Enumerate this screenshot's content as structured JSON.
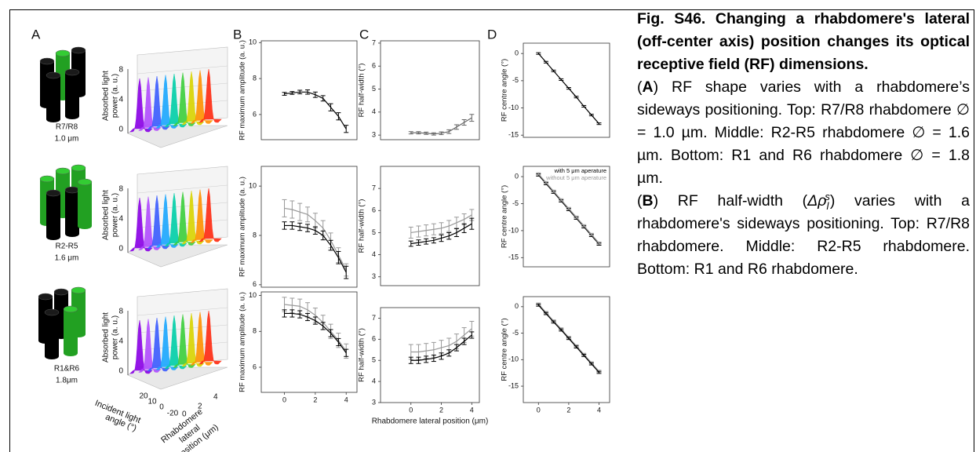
{
  "panel_labels": [
    "A",
    "B",
    "C",
    "D"
  ],
  "panel_a": {
    "rows": [
      {
        "name": "R7/R8",
        "size": "1.0 μm"
      },
      {
        "name": "R2-R5",
        "size": "1.6 μm"
      },
      {
        "name": "R1&R6",
        "size": "1.8μm"
      }
    ],
    "zlabel": [
      "Absorbed light",
      "power (a. u.)"
    ],
    "zticks": [
      "0",
      "4",
      "8"
    ],
    "angle_label": [
      "Incident light",
      "angle (°)"
    ],
    "angle_ticks": [
      "20",
      "10",
      "0",
      "-20"
    ],
    "position_label": [
      "Rhabdomere",
      "lateral",
      "position (μm)"
    ],
    "position_ticks": [
      "0",
      "2",
      "4"
    ]
  },
  "chart_data": [
    {
      "type": "line",
      "ylabel": "RF maximum amplitude (a. u.)",
      "x": [
        0,
        0.5,
        1,
        1.5,
        2,
        2.5,
        3,
        3.5,
        4
      ],
      "xlim": [
        -1.5,
        4.7
      ],
      "ylim": [
        4.6,
        10.1
      ],
      "yticks": [
        6,
        8,
        10
      ],
      "series": [
        {
          "color": "#000000",
          "values": [
            7.15,
            7.2,
            7.25,
            7.25,
            7.1,
            6.9,
            6.4,
            5.9,
            5.2
          ],
          "errors": [
            0.08,
            0.08,
            0.1,
            0.12,
            0.15,
            0.15,
            0.2,
            0.2,
            0.2
          ]
        }
      ]
    },
    {
      "type": "line",
      "ylabel": "RF half-width (°)",
      "x": [
        0,
        0.5,
        1,
        1.5,
        2,
        2.5,
        3,
        3.5,
        4
      ],
      "xlim": [
        -2,
        4.5
      ],
      "ylim": [
        2.8,
        7.1
      ],
      "yticks": [
        3,
        4,
        5,
        6,
        7
      ],
      "series": [
        {
          "color": "#666666",
          "values": [
            3.1,
            3.1,
            3.08,
            3.05,
            3.08,
            3.15,
            3.35,
            3.55,
            3.75
          ],
          "errors": [
            0.05,
            0.05,
            0.05,
            0.05,
            0.06,
            0.08,
            0.1,
            0.12,
            0.15
          ]
        }
      ]
    },
    {
      "type": "line",
      "ylabel": "RF centre angle (°)",
      "x": [
        0,
        0.5,
        1,
        1.5,
        2,
        2.5,
        3,
        3.5,
        4
      ],
      "xlim": [
        -1,
        4.7
      ],
      "ylim": [
        -15.4,
        1.9
      ],
      "yticks": [
        -15,
        -10,
        -5,
        0
      ],
      "series": [
        {
          "color": "#000000",
          "values": [
            0,
            -1.6,
            -3.2,
            -4.8,
            -6.4,
            -8.0,
            -9.7,
            -11.3,
            -12.9
          ],
          "errors": [
            0.15,
            0.15,
            0.15,
            0.15,
            0.15,
            0.15,
            0.15,
            0.15,
            0.15
          ]
        }
      ]
    },
    {
      "type": "line",
      "ylabel": "RF maximum amplitude (a. u.)",
      "x": [
        0,
        0.5,
        1,
        1.5,
        2,
        2.5,
        3,
        3.5,
        4
      ],
      "xlim": [
        -1.5,
        4.7
      ],
      "ylim": [
        5.9,
        10.8
      ],
      "yticks": [
        6,
        8,
        10
      ],
      "series": [
        {
          "color": "#999999",
          "values": [
            9.1,
            9.05,
            8.95,
            8.85,
            8.6,
            8.3,
            7.8,
            7.2,
            6.6
          ],
          "errors": [
            0.35,
            0.35,
            0.35,
            0.3,
            0.3,
            0.3,
            0.3,
            0.3,
            0.25
          ]
        },
        {
          "color": "#000000",
          "values": [
            8.4,
            8.4,
            8.35,
            8.3,
            8.2,
            8.0,
            7.6,
            7.1,
            6.5
          ],
          "errors": [
            0.15,
            0.15,
            0.15,
            0.15,
            0.15,
            0.18,
            0.2,
            0.25,
            0.25
          ]
        }
      ]
    },
    {
      "type": "line",
      "ylabel": "RF half-width (°)",
      "x": [
        0,
        0.5,
        1,
        1.5,
        2,
        2.5,
        3,
        3.5,
        4
      ],
      "xlim": [
        -2,
        4.5
      ],
      "ylim": [
        2.6,
        8
      ],
      "yticks": [
        3,
        4,
        5,
        6,
        7
      ],
      "series": [
        {
          "color": "#999999",
          "values": [
            5.0,
            5.05,
            5.1,
            5.15,
            5.2,
            5.3,
            5.45,
            5.6,
            5.8
          ],
          "errors": [
            0.25,
            0.25,
            0.25,
            0.25,
            0.25,
            0.25,
            0.25,
            0.25,
            0.25
          ]
        },
        {
          "color": "#000000",
          "values": [
            4.5,
            4.55,
            4.6,
            4.65,
            4.75,
            4.85,
            5.0,
            5.2,
            5.4
          ],
          "errors": [
            0.12,
            0.12,
            0.12,
            0.12,
            0.15,
            0.15,
            0.18,
            0.2,
            0.25
          ]
        }
      ]
    },
    {
      "type": "line",
      "ylabel": "RF centre angle (°)",
      "x": [
        0,
        0.5,
        1,
        1.5,
        2,
        2.5,
        3,
        3.5,
        4
      ],
      "xlim": [
        -1,
        4.7
      ],
      "ylim": [
        -16.7,
        1.9
      ],
      "yticks": [
        -15,
        -10,
        -5,
        0
      ],
      "legend": "upper right",
      "series": [
        {
          "name": "with 5 μm aperature",
          "color": "#000000",
          "values": [
            0.3,
            -1.3,
            -2.9,
            -4.5,
            -6.1,
            -7.7,
            -9.3,
            -10.9,
            -12.5
          ],
          "errors": [
            0.2,
            0.2,
            0.2,
            0.2,
            0.2,
            0.2,
            0.2,
            0.2,
            0.2
          ]
        },
        {
          "name": "without 5 μm aperature",
          "color": "#999999",
          "values": [
            0.5,
            -1.1,
            -2.7,
            -4.3,
            -5.9,
            -7.5,
            -9.1,
            -10.7,
            -12.3
          ],
          "errors": [
            0.2,
            0.2,
            0.2,
            0.2,
            0.2,
            0.2,
            0.2,
            0.2,
            0.2
          ]
        }
      ]
    },
    {
      "type": "line",
      "ylabel": "RF maximum amplitude (a. u.)",
      "x": [
        0,
        0.5,
        1,
        1.5,
        2,
        2.5,
        3,
        3.5,
        4
      ],
      "xlim": [
        -1.5,
        4.7
      ],
      "ylim": [
        4.6,
        10.2
      ],
      "yticks": [
        6,
        8,
        10
      ],
      "xticks": [
        0,
        2,
        4
      ],
      "series": [
        {
          "color": "#999999",
          "values": [
            9.5,
            9.45,
            9.4,
            9.2,
            8.9,
            8.5,
            8.0,
            7.5,
            6.9
          ],
          "errors": [
            0.4,
            0.4,
            0.4,
            0.4,
            0.4,
            0.4,
            0.4,
            0.4,
            0.4
          ]
        },
        {
          "color": "#000000",
          "values": [
            9.0,
            9.0,
            8.95,
            8.8,
            8.6,
            8.3,
            7.9,
            7.4,
            6.8
          ],
          "errors": [
            0.2,
            0.2,
            0.2,
            0.2,
            0.2,
            0.2,
            0.2,
            0.2,
            0.2
          ]
        }
      ]
    },
    {
      "type": "line",
      "ylabel": "RF half-width (°)",
      "xlabel": "Rhabdomere lateral position (μm)",
      "x": [
        0,
        0.5,
        1,
        1.5,
        2,
        2.5,
        3,
        3.5,
        4
      ],
      "xlim": [
        -2,
        4.5
      ],
      "ylim": [
        3,
        7.5
      ],
      "yticks": [
        3,
        4,
        5,
        6,
        7
      ],
      "xticks": [
        0,
        2,
        4
      ],
      "series": [
        {
          "color": "#999999",
          "values": [
            5.4,
            5.4,
            5.45,
            5.5,
            5.6,
            5.7,
            5.9,
            6.2,
            6.5
          ],
          "errors": [
            0.35,
            0.35,
            0.35,
            0.35,
            0.35,
            0.35,
            0.35,
            0.35,
            0.35
          ]
        },
        {
          "color": "#000000",
          "values": [
            5.0,
            5.0,
            5.05,
            5.1,
            5.2,
            5.35,
            5.6,
            5.9,
            6.2
          ],
          "errors": [
            0.15,
            0.15,
            0.15,
            0.15,
            0.15,
            0.15,
            0.15,
            0.15,
            0.15
          ]
        }
      ]
    },
    {
      "type": "line",
      "ylabel": "RF centre angle (°)",
      "x": [
        0,
        0.5,
        1,
        1.5,
        2,
        2.5,
        3,
        3.5,
        4
      ],
      "xlim": [
        -1,
        4.7
      ],
      "ylim": [
        -18.1,
        1.9
      ],
      "yticks": [
        -15,
        -10,
        -5,
        0
      ],
      "xticks": [
        0,
        2,
        4
      ],
      "series": [
        {
          "color": "#999999",
          "values": [
            0.5,
            -1.1,
            -2.7,
            -4.2,
            -5.8,
            -7.4,
            -9.0,
            -10.6,
            -12.2
          ],
          "errors": [
            0.2,
            0.2,
            0.2,
            0.2,
            0.2,
            0.2,
            0.2,
            0.2,
            0.2
          ]
        },
        {
          "color": "#000000",
          "values": [
            0.3,
            -1.3,
            -2.9,
            -4.4,
            -6.0,
            -7.6,
            -9.2,
            -10.8,
            -12.4
          ],
          "errors": [
            0.2,
            0.2,
            0.2,
            0.2,
            0.2,
            0.2,
            0.2,
            0.2,
            0.2
          ]
        }
      ]
    }
  ],
  "caption": {
    "title": "Fig. S46. Changing a rhabdomere's lateral (off-center axis) position changes its optical receptive field (RF) dimensions.",
    "paragraphs": [
      [
        {
          "text": "("
        },
        {
          "text": "A",
          "bold": true
        },
        {
          "text": ") RF shape varies with a rhabdomere’s sideways positioning. Top: R7/R8 rhabdomere ∅ = 1.0 µm. Middle: R2-R5 rhabdomere ∅ = 1.6 µm. Bottom: R1 and R6 rhabdomere ∅ = 1.8 µm."
        }
      ],
      [
        {
          "text": "("
        },
        {
          "text": "B",
          "bold": true
        },
        {
          "text": ") RF half-width ("
        },
        {
          "text": "Δρ",
          "italic": true
        },
        {
          "text": "l",
          "italic": true,
          "script": "sub"
        },
        {
          "text": "s",
          "italic": true,
          "script": "sup"
        },
        {
          "text": ") varies with a rhabdomere's sideways positioning. Top: R7/R8 rhabdomere. Middle: R2-R5 rhabdomere. Bottom: R1 and R6 rhabdomere."
        }
      ]
    ]
  }
}
